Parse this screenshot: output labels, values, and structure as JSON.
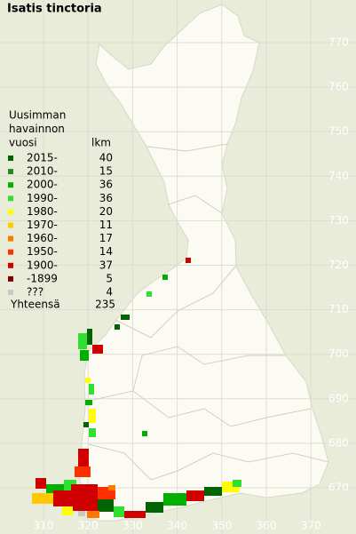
{
  "title": "Isatis tinctoria",
  "legend": {
    "heading": [
      "Uusimman",
      "havainnon",
      "vuosi"
    ],
    "count_heading": "lkm",
    "rows": [
      {
        "label": "2015-",
        "count": 40,
        "color": "#006400"
      },
      {
        "label": "2010-",
        "count": 15,
        "color": "#208a20"
      },
      {
        "label": "2000-",
        "count": 36,
        "color": "#00b000"
      },
      {
        "label": "1990-",
        "count": 36,
        "color": "#30e030"
      },
      {
        "label": "1980-",
        "count": 20,
        "color": "#ffff00"
      },
      {
        "label": "1970-",
        "count": 11,
        "color": "#ffc800"
      },
      {
        "label": "1960-",
        "count": 17,
        "color": "#ff7800"
      },
      {
        "label": "1950-",
        "count": 14,
        "color": "#ff3000"
      },
      {
        "label": "1900-",
        "count": 37,
        "color": "#d00000"
      },
      {
        "label": "-1899",
        "count": 5,
        "color": "#800000"
      },
      {
        "label": "???",
        "count": 4,
        "color": "#c8c8c8"
      }
    ],
    "total_label": "Yhteensä",
    "total": 235
  },
  "grid": {
    "northing": [
      770,
      760,
      750,
      740,
      730,
      720,
      710,
      700,
      690,
      680,
      670
    ],
    "easting": [
      310,
      320,
      330,
      340,
      350,
      360,
      370
    ]
  }
}
